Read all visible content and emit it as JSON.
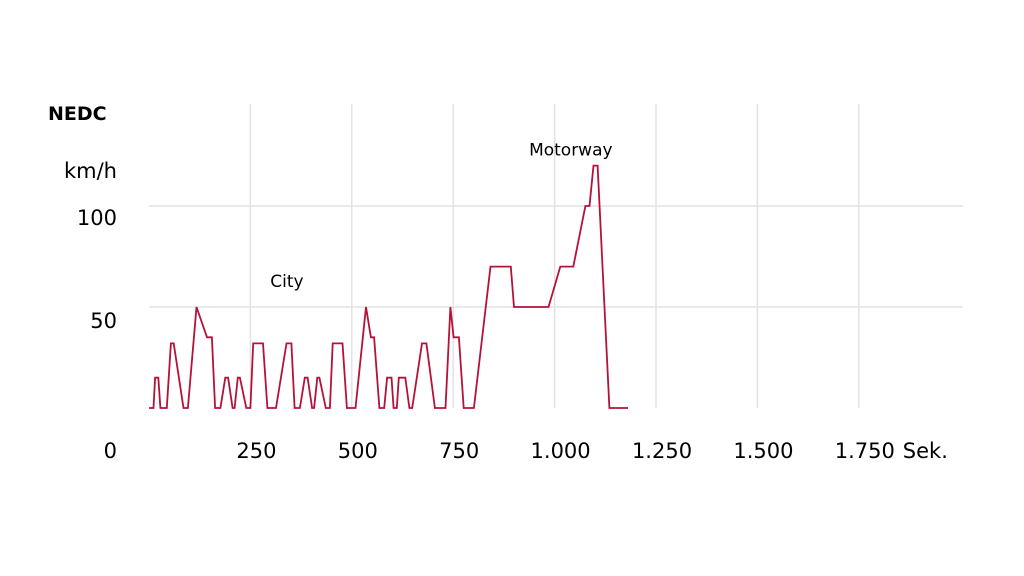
{
  "chart_data": {
    "type": "line",
    "title": "NEDC",
    "ylabel": "km/h",
    "xunit": "Sek.",
    "xlim": [
      0,
      2000
    ],
    "ylim": [
      0,
      120
    ],
    "grid": true,
    "y_ticks": [
      {
        "value": 0,
        "label": "0"
      },
      {
        "value": 50,
        "label": "50"
      },
      {
        "value": 100,
        "label": "100"
      }
    ],
    "x_ticks": [
      {
        "value": 250,
        "label": "250"
      },
      {
        "value": 500,
        "label": "500"
      },
      {
        "value": 750,
        "label": "750"
      },
      {
        "value": 1000,
        "label": "1.000"
      },
      {
        "value": 1250,
        "label": "1.250"
      },
      {
        "value": 1500,
        "label": "1.500"
      },
      {
        "value": 1750,
        "label": "1.750"
      }
    ],
    "annotations": [
      {
        "text": "City",
        "x": 340,
        "y": 60
      },
      {
        "text": "Motorway",
        "x": 1040,
        "y": 125
      }
    ],
    "series": [
      {
        "color": "#b5123a",
        "x": [
          0,
          11,
          15,
          23,
          28,
          44,
          54,
          61,
          85,
          96,
          117,
          143,
          155,
          163,
          176,
          188,
          195,
          206,
          211,
          219,
          224,
          240,
          250,
          257,
          281,
          292,
          313,
          339,
          351,
          359,
          372,
          384,
          391,
          402,
          407,
          415,
          420,
          436,
          446,
          453,
          477,
          488,
          509,
          535,
          547,
          555,
          568,
          580,
          587,
          598,
          603,
          611,
          616,
          632,
          642,
          649,
          673,
          684,
          705,
          731,
          743,
          751,
          764,
          776,
          781,
          801,
          842,
          850,
          892,
          900,
          975,
          985,
          1014,
          1046,
          1076,
          1086,
          1096,
          1106,
          1135,
          1155,
          1171,
          1181
        ],
        "y": [
          0,
          0,
          15,
          15,
          0,
          0,
          32,
          32,
          0,
          0,
          50,
          35,
          35,
          0,
          0,
          15,
          15,
          0,
          0,
          15,
          15,
          0,
          0,
          32,
          32,
          0,
          0,
          32,
          32,
          0,
          0,
          15,
          15,
          0,
          0,
          15,
          15,
          0,
          0,
          32,
          32,
          0,
          0,
          50,
          35,
          35,
          0,
          0,
          15,
          15,
          0,
          0,
          15,
          15,
          0,
          0,
          32,
          32,
          0,
          0,
          50,
          35,
          35,
          0,
          0,
          0,
          70,
          70,
          70,
          50,
          50,
          50,
          70,
          70,
          100,
          100,
          120,
          120,
          0,
          0,
          0,
          0
        ]
      }
    ]
  }
}
